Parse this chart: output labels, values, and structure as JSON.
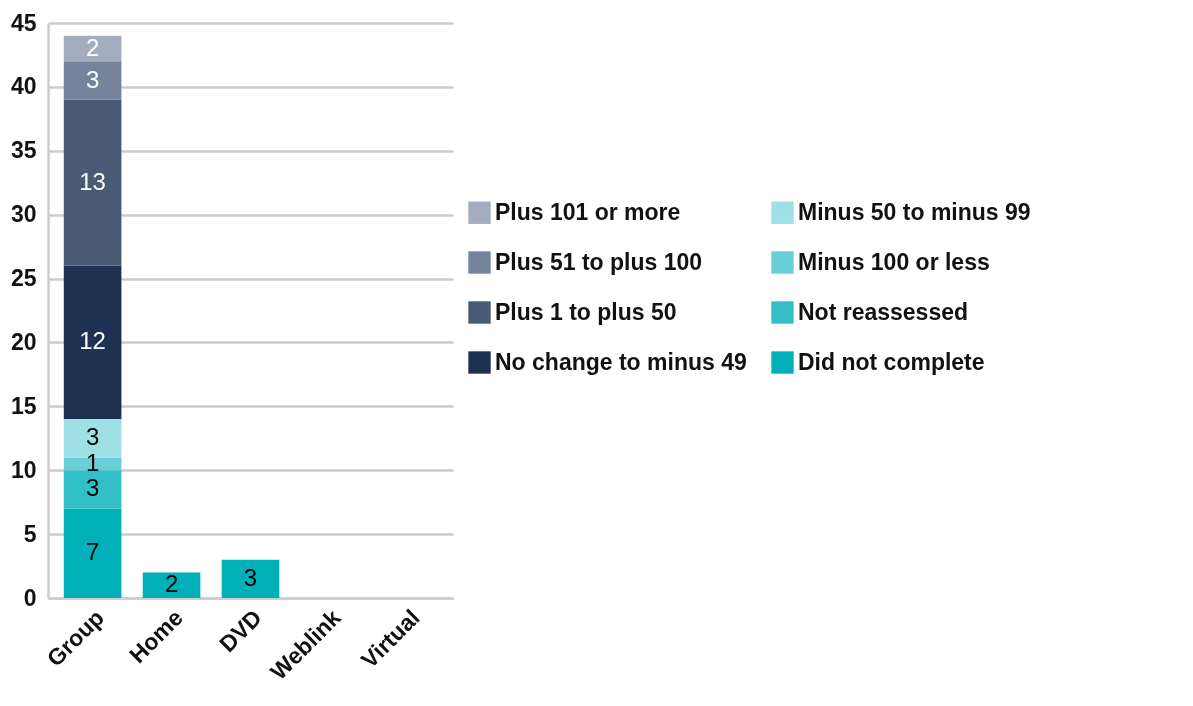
{
  "chart_data": {
    "type": "bar",
    "stacked": true,
    "categories": [
      "Group",
      "Home",
      "DVD",
      "Weblink",
      "Virtual"
    ],
    "series": [
      {
        "name": "Did not complete",
        "color": "#00b0b9",
        "values": [
          7,
          2,
          3,
          null,
          null
        ]
      },
      {
        "name": "Not reassessed",
        "color": "#33bfc7",
        "values": [
          3,
          null,
          null,
          null,
          null
        ]
      },
      {
        "name": "Minus 100 or less",
        "color": "#67cfd5",
        "values": [
          1,
          null,
          null,
          null,
          null
        ]
      },
      {
        "name": "Minus 50 to minus 99",
        "color": "#9ee0e5",
        "values": [
          3,
          null,
          null,
          null,
          null
        ]
      },
      {
        "name": "No change to minus 49",
        "color": "#1f3152",
        "values": [
          12,
          null,
          null,
          null,
          null
        ]
      },
      {
        "name": "Plus 1 to plus 50",
        "color": "#495a75",
        "values": [
          13,
          null,
          null,
          null,
          null
        ]
      },
      {
        "name": "Plus 51 to plus 100",
        "color": "#75849c",
        "values": [
          3,
          null,
          null,
          null,
          null
        ]
      },
      {
        "name": "Plus 101 or more",
        "color": "#a3adbd",
        "values": [
          2,
          null,
          null,
          null,
          null
        ]
      }
    ],
    "ylim": [
      0,
      45
    ],
    "yticks": [
      0,
      5,
      10,
      15,
      20,
      25,
      30,
      35,
      40,
      45
    ],
    "grid": "y",
    "legend": "right",
    "data_labels": true
  }
}
